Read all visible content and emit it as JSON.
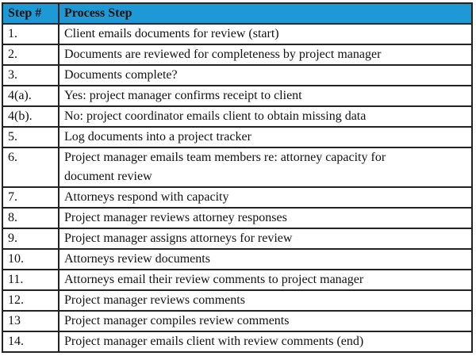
{
  "table": {
    "header_color": "#1d9ad6",
    "headers": [
      "Step #",
      "Process Step"
    ],
    "rows": [
      {
        "step": "1.",
        "text": "Client emails documents for review (start)"
      },
      {
        "step": "2.",
        "text": "Documents are reviewed for completeness by project manager"
      },
      {
        "step": "3.",
        "text": "Documents complete?"
      },
      {
        "step": "4(a).",
        "text": "Yes: project manager confirms receipt to client"
      },
      {
        "step": "4(b).",
        "text": "No: project coordinator emails client to obtain missing data"
      },
      {
        "step": "5.",
        "text": "Log documents into a project tracker"
      },
      {
        "step": "6.",
        "text": "Project manager emails team members re: attorney capacity for document review"
      },
      {
        "step": "7.",
        "text": "Attorneys respond with capacity"
      },
      {
        "step": "8.",
        "text": "Project manager reviews attorney responses"
      },
      {
        "step": "9.",
        "text": "Project manager assigns attorneys for review"
      },
      {
        "step": "10.",
        "text": "Attorneys review documents"
      },
      {
        "step": "11.",
        "text": "Attorneys email their review comments to project manager"
      },
      {
        "step": "12.",
        "text": "Project manager reviews comments"
      },
      {
        "step": "13",
        "text": "Project manager compiles review comments"
      },
      {
        "step": "14.",
        "text": "Project manager emails client with review comments (end)"
      }
    ]
  }
}
